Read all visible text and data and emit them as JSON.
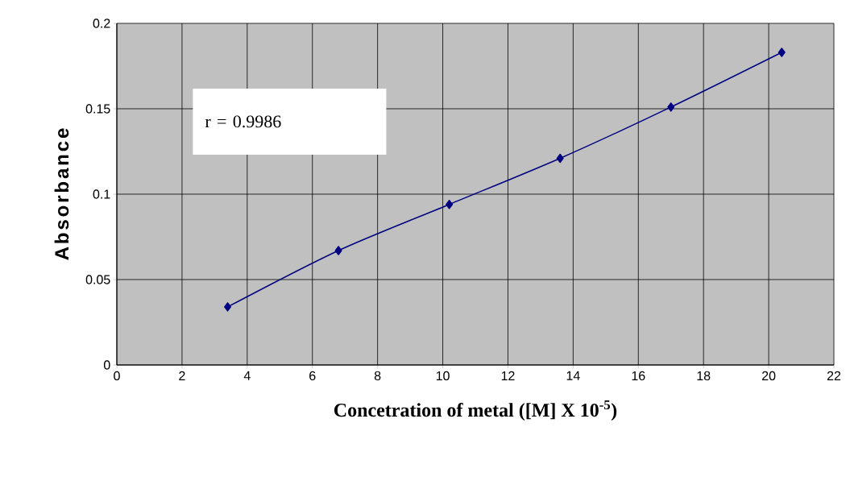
{
  "chart_data": {
    "type": "line",
    "xlabel": "Concetration of metal ([M] X 10$^{-5}$)",
    "ylabel": "Absorbance",
    "x": [
      3.4,
      6.8,
      10.2,
      13.6,
      17,
      20.4
    ],
    "series": [
      {
        "color": "#000080",
        "values": [
          0.034,
          0.067,
          0.094,
          0.121,
          0.151,
          0.183
        ]
      }
    ],
    "xlim": [
      0,
      22
    ],
    "ylim": [
      0,
      0.2
    ],
    "xticks": [
      0,
      2,
      4,
      6,
      8,
      10,
      12,
      14,
      16,
      18,
      20,
      22
    ],
    "yticks": [
      0,
      0.05,
      0.1,
      0.15,
      0.2
    ],
    "annotations": [
      "r = 0.9986"
    ],
    "grid": true,
    "marker": "diamond",
    "line_style": "solid"
  }
}
